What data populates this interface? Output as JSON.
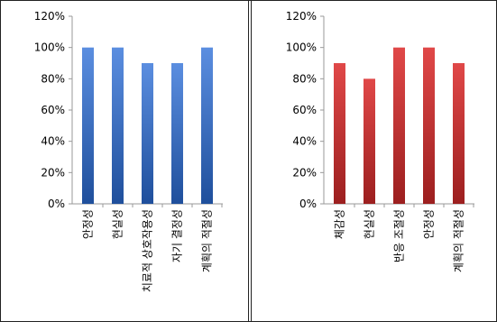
{
  "chart_data": [
    {
      "type": "bar",
      "categories": [
        "안정성",
        "현실성",
        "치료적 상호작용성",
        "자기 결정성",
        "계획의 적절성"
      ],
      "values": [
        100,
        100,
        90,
        90,
        100
      ],
      "yticks": [
        "0%",
        "20%",
        "40%",
        "60%",
        "80%",
        "100%",
        "120%"
      ],
      "ylim": [
        0,
        120
      ],
      "grid": false,
      "color_top": "#5b8ee0",
      "color_bottom": "#1f4f9c"
    },
    {
      "type": "bar",
      "categories": [
        "체감성",
        "현실성",
        "반응 조절성",
        "안정성",
        "계획의 적절성"
      ],
      "values": [
        90,
        80,
        100,
        100,
        90
      ],
      "yticks": [
        "0%",
        "20%",
        "40%",
        "60%",
        "80%",
        "100%",
        "120%"
      ],
      "ylim": [
        0,
        120
      ],
      "grid": false,
      "color_top": "#e04848",
      "color_bottom": "#9c1f1f"
    }
  ]
}
